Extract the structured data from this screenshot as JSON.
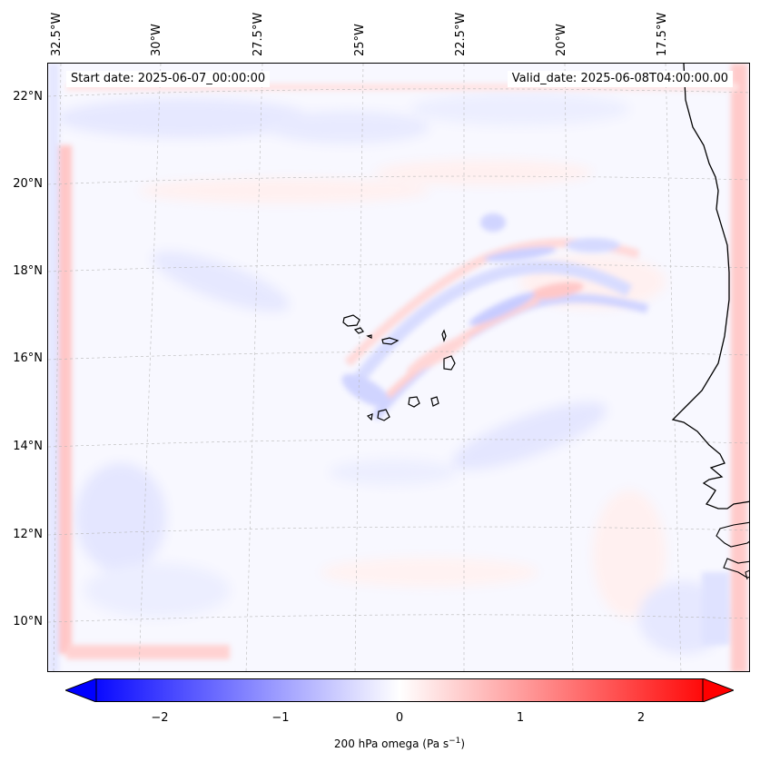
{
  "map": {
    "start_date": "Start date: 2025-06-07_00:00:00",
    "valid_date": "Valid_date: 2025-06-08T04:00:00.00"
  },
  "longitude_labels": [
    "32.5°W",
    "30°W",
    "27.5°W",
    "25°W",
    "22.5°W",
    "20°W",
    "17.5°W"
  ],
  "latitude_labels": [
    "22°N",
    "20°N",
    "18°N",
    "16°N",
    "14°N",
    "12°N",
    "10°N"
  ],
  "colorbar": {
    "ticks": [
      "−2",
      "−1",
      "0",
      "1",
      "2"
    ],
    "title_text": "200 hPa omega (Pa s",
    "title_unit_exp": "−1",
    "title_close": ")",
    "range": [
      -2.7,
      2.7
    ],
    "low_color": "#0000ff",
    "mid_color": "#ffffff",
    "high_color": "#ff0000"
  }
}
